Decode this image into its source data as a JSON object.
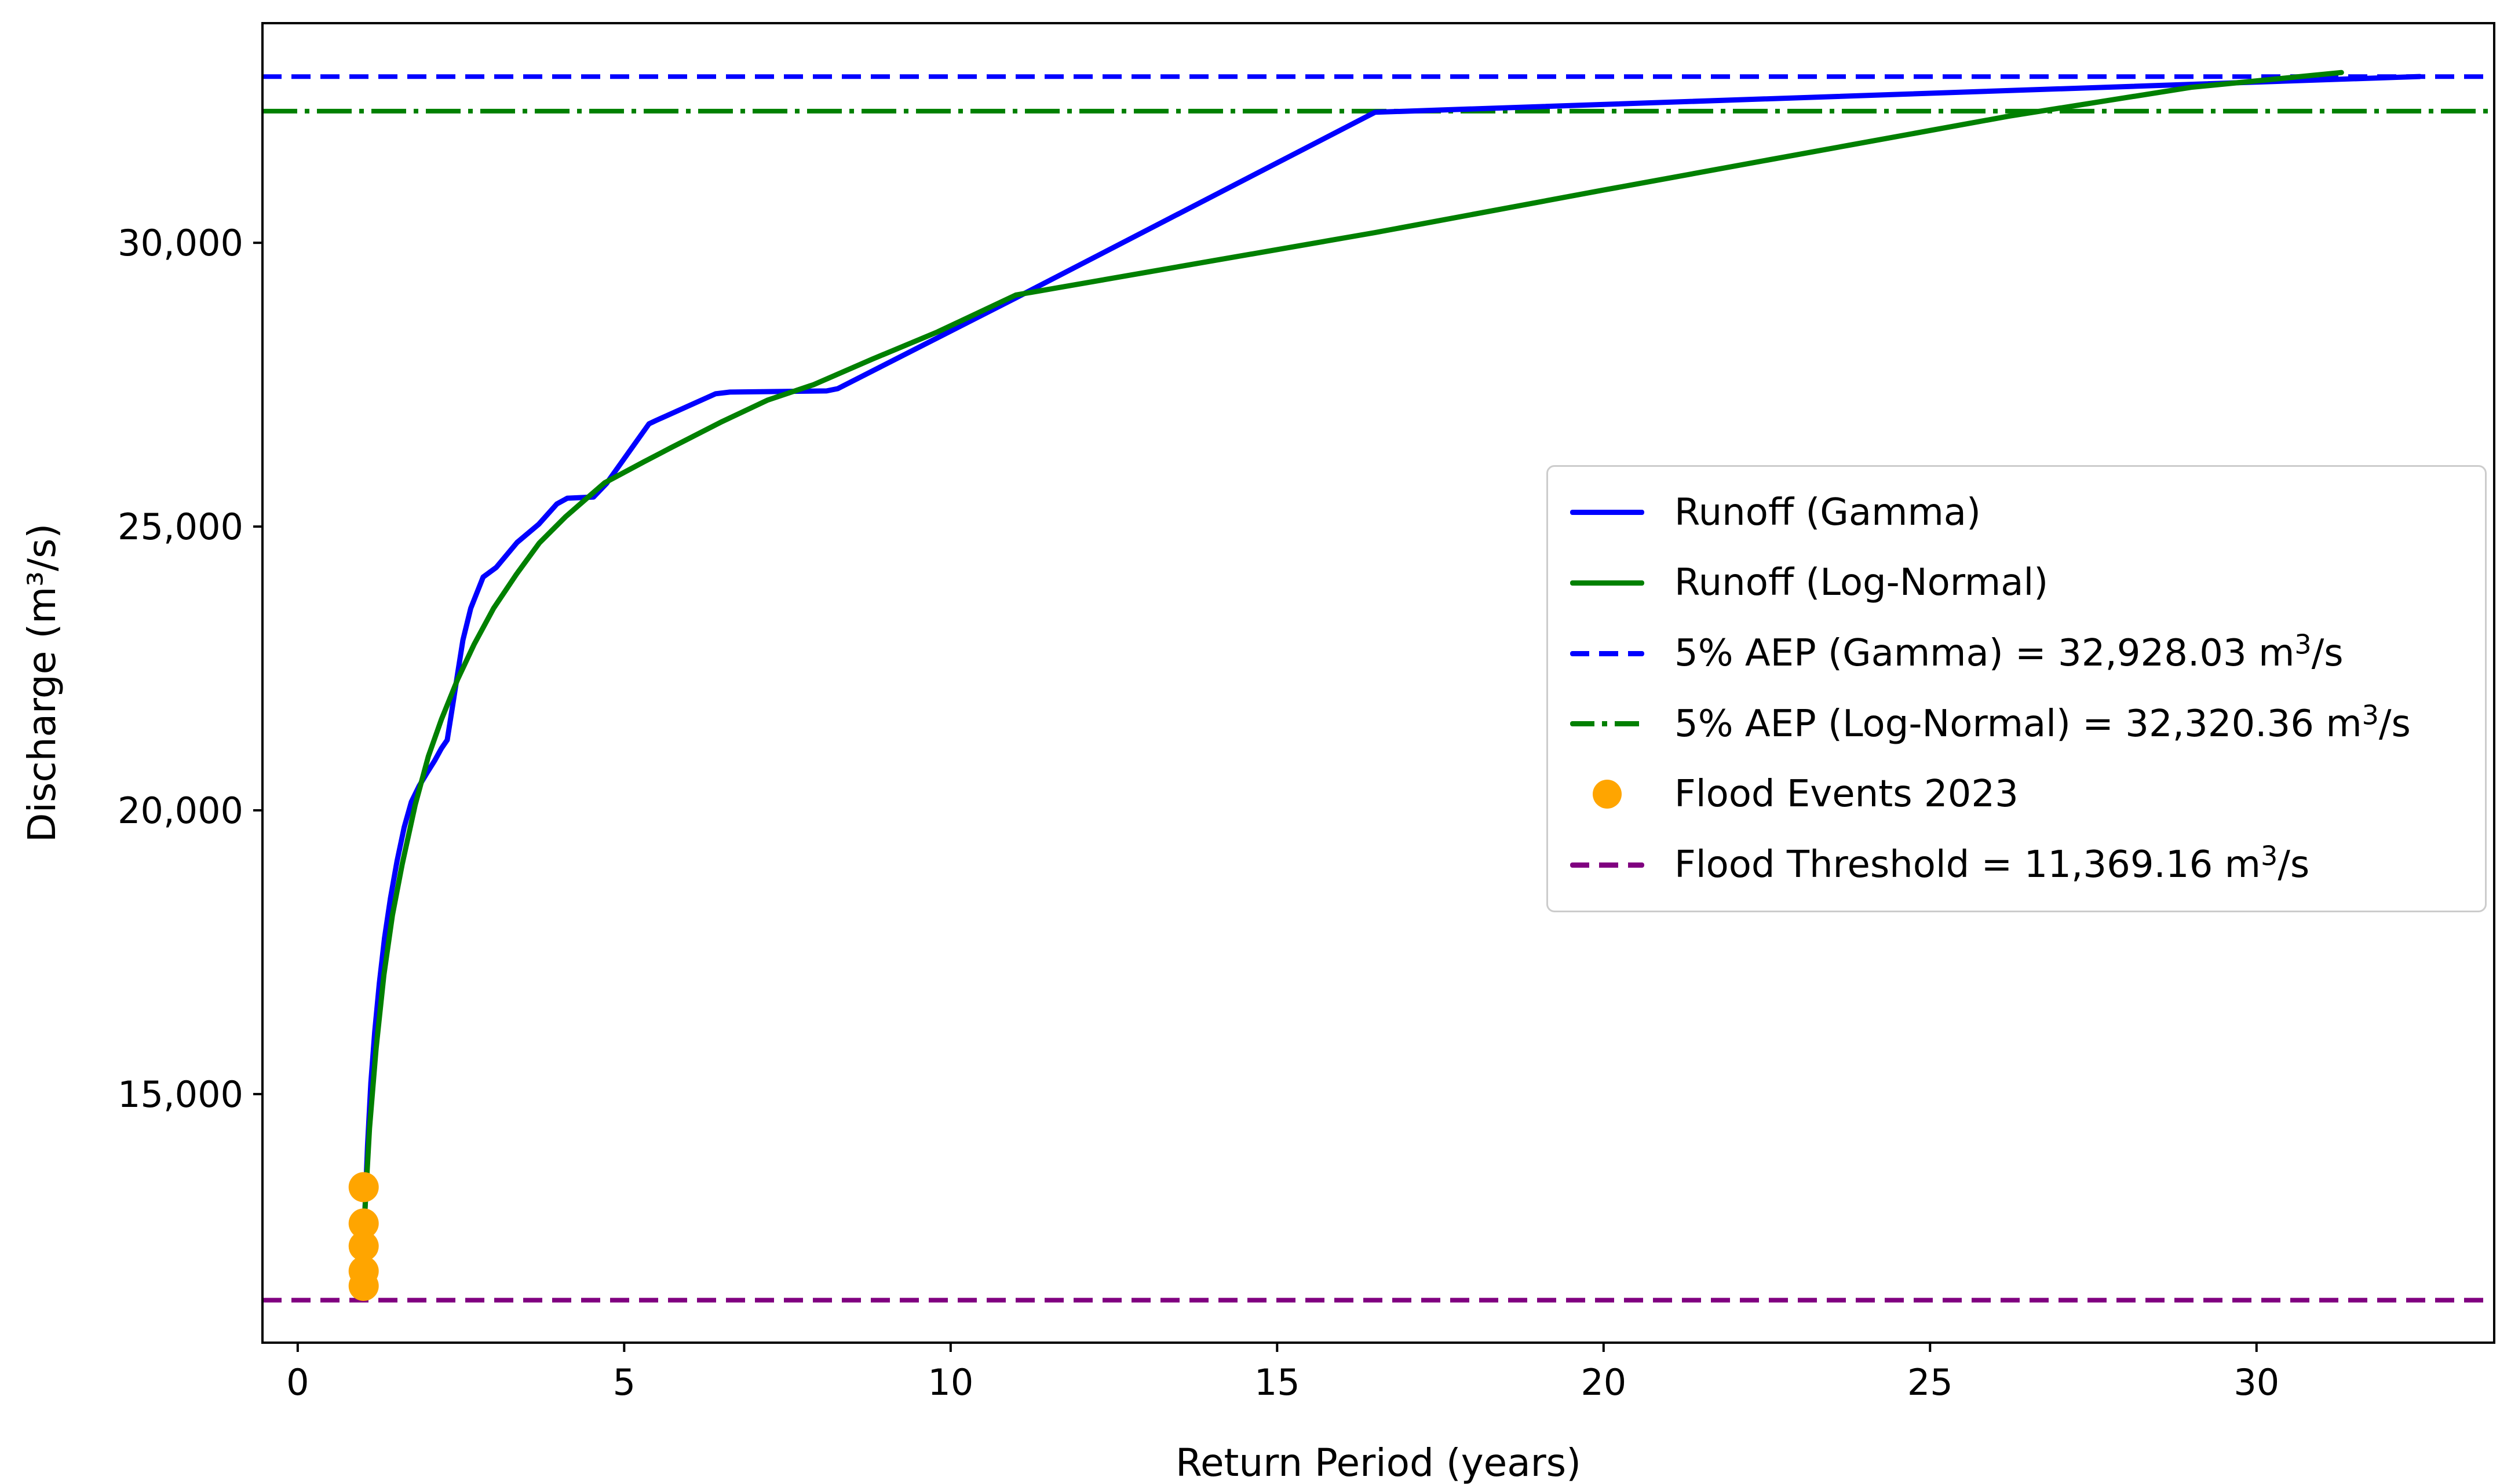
{
  "figure": {
    "background": "#ffffff",
    "axis_color": "#000000",
    "legend_border_color": "#cccccc"
  },
  "chart_data": {
    "type": "line",
    "title": "",
    "xlabel": "Return Period (years)",
    "ylabel": "Discharge (m³/s)",
    "xlim": [
      -0.54,
      33.64
    ],
    "ylim": [
      10620,
      33870
    ],
    "grid": false,
    "legend_position": "center right",
    "x_ticks": [
      0,
      5,
      10,
      15,
      20,
      25,
      30
    ],
    "x_tick_labels": [
      "0",
      "5",
      "10",
      "15",
      "20",
      "25",
      "30"
    ],
    "y_ticks": [
      15000,
      20000,
      25000,
      30000
    ],
    "y_tick_labels": [
      "15,000",
      "20,000",
      "25,000",
      "30,000"
    ],
    "series": [
      {
        "key": "gamma",
        "name": "Runoff (Gamma)",
        "type": "line",
        "style": "solid",
        "color": "#0000ff",
        "points": [
          [
            1.03,
            12950
          ],
          [
            1.07,
            14100
          ],
          [
            1.12,
            15200
          ],
          [
            1.18,
            16100
          ],
          [
            1.25,
            16950
          ],
          [
            1.33,
            17750
          ],
          [
            1.42,
            18450
          ],
          [
            1.52,
            19100
          ],
          [
            1.63,
            19700
          ],
          [
            1.74,
            20150
          ],
          [
            1.86,
            20430
          ],
          [
            1.98,
            20660
          ],
          [
            2.1,
            20880
          ],
          [
            2.2,
            21090
          ],
          [
            2.29,
            21240
          ],
          [
            2.38,
            21900
          ],
          [
            2.45,
            22420
          ],
          [
            2.53,
            23000
          ],
          [
            2.65,
            23560
          ],
          [
            2.84,
            24110
          ],
          [
            3.04,
            24280
          ],
          [
            3.36,
            24720
          ],
          [
            3.69,
            25040
          ],
          [
            3.97,
            25400
          ],
          [
            4.13,
            25500
          ],
          [
            4.53,
            25520
          ],
          [
            4.73,
            25760
          ],
          [
            5.38,
            26810
          ],
          [
            5.49,
            26870
          ],
          [
            6.4,
            27340
          ],
          [
            6.62,
            27370
          ],
          [
            8.1,
            27390
          ],
          [
            8.27,
            27430
          ],
          [
            11.0,
            29030
          ],
          [
            16.5,
            32300
          ],
          [
            32.5,
            32930
          ]
        ]
      },
      {
        "key": "lognormal",
        "name": "Runoff (Log-Normal)",
        "type": "line",
        "style": "solid",
        "color": "#008000",
        "points": [
          [
            1.03,
            12950
          ],
          [
            1.1,
            14400
          ],
          [
            1.2,
            15800
          ],
          [
            1.32,
            17100
          ],
          [
            1.45,
            18150
          ],
          [
            1.6,
            19050
          ],
          [
            1.8,
            20100
          ],
          [
            2.0,
            20950
          ],
          [
            2.2,
            21600
          ],
          [
            2.45,
            22310
          ],
          [
            2.7,
            22920
          ],
          [
            3.0,
            23560
          ],
          [
            3.35,
            24160
          ],
          [
            3.7,
            24710
          ],
          [
            4.1,
            25170
          ],
          [
            4.7,
            25770
          ],
          [
            5.3,
            26140
          ],
          [
            5.7,
            26380
          ],
          [
            6.5,
            26850
          ],
          [
            7.2,
            27230
          ],
          [
            7.9,
            27500
          ],
          [
            8.8,
            27950
          ],
          [
            9.8,
            28430
          ],
          [
            11.0,
            29080
          ],
          [
            16.5,
            30180
          ],
          [
            20.0,
            30930
          ],
          [
            23.0,
            31560
          ],
          [
            26.2,
            32230
          ],
          [
            29.0,
            32740
          ],
          [
            31.3,
            33000
          ]
        ]
      },
      {
        "key": "aep_gamma",
        "name": "5% AEP (Gamma) = 32,928.03 m³/s",
        "type": "hline",
        "style": "dashed",
        "color": "#0000ff",
        "value": 32928.03
      },
      {
        "key": "aep_lognormal",
        "name": "5% AEP (Log-Normal) = 32,320.36 m³/s",
        "type": "hline",
        "style": "dashdot",
        "color": "#008000",
        "value": 32320.36
      },
      {
        "key": "flood_events",
        "name": "Flood Events 2023",
        "type": "scatter",
        "color": "#ffa500",
        "marker_radius": 26,
        "points": [
          [
            1.01,
            13360
          ],
          [
            1.01,
            12720
          ],
          [
            1.01,
            12320
          ],
          [
            1.01,
            11880
          ],
          [
            1.01,
            11620
          ]
        ]
      },
      {
        "key": "flood_threshold",
        "name": "Flood Threshold = 11,369.16 m³/s",
        "type": "hline",
        "style": "dashed",
        "color": "#800080",
        "value": 11369.16
      }
    ]
  }
}
